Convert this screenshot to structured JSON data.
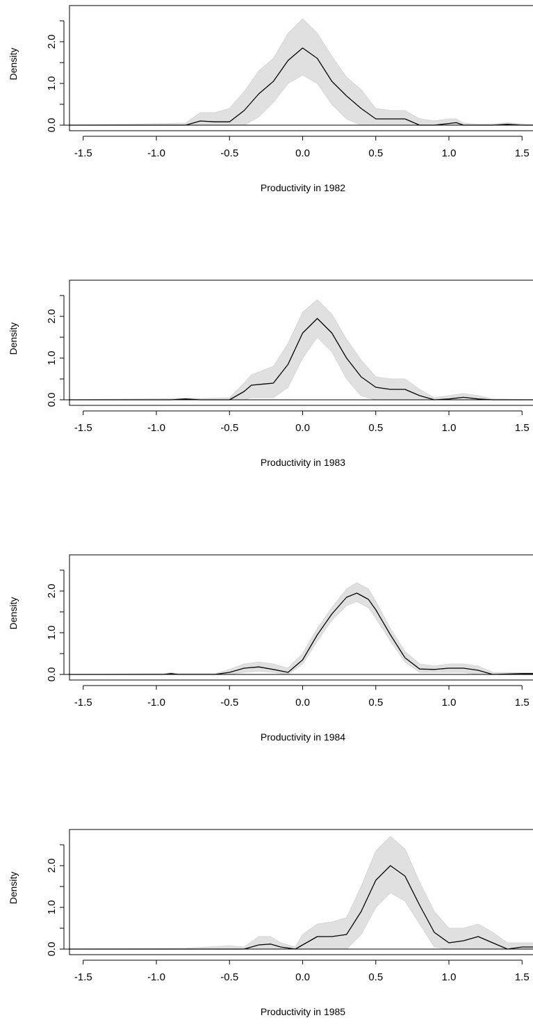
{
  "chart_data": [
    {
      "type": "area",
      "xlabel": "Productivity in 1982",
      "ylabel": "Density",
      "xlim": [
        -1.5,
        1.5
      ],
      "ylim": [
        0,
        2.5
      ],
      "x_ticks": [
        "-1.5",
        "-1.0",
        "-0.5",
        "0.0",
        "0.5",
        "1.0",
        "1.5"
      ],
      "y_ticks": [
        "0.0",
        "1.0",
        "2.0"
      ],
      "series": [
        {
          "x": [
            -1.6,
            -0.8,
            -0.7,
            -0.6,
            -0.5,
            -0.4,
            -0.3,
            -0.2,
            -0.1,
            0.0,
            0.1,
            0.2,
            0.3,
            0.4,
            0.5,
            0.6,
            0.7,
            0.8,
            0.9,
            1.0,
            1.05,
            1.1,
            1.2,
            1.3,
            1.4,
            1.5,
            1.6
          ],
          "y": [
            0,
            0,
            0.1,
            0.08,
            0.08,
            0.35,
            0.75,
            1.05,
            1.55,
            1.85,
            1.6,
            1.05,
            0.7,
            0.4,
            0.15,
            0.15,
            0.15,
            0,
            0,
            0.04,
            0.06,
            0,
            0,
            0,
            0.02,
            0,
            0
          ],
          "lower": [
            0,
            0,
            0,
            0,
            0,
            0,
            0.2,
            0.55,
            1.0,
            1.2,
            1.0,
            0.5,
            0.15,
            0,
            0,
            0,
            0,
            0,
            0,
            0,
            0,
            0,
            0,
            0,
            0,
            0,
            0
          ],
          "upper": [
            0,
            0.05,
            0.3,
            0.3,
            0.4,
            0.8,
            1.3,
            1.6,
            2.2,
            2.55,
            2.2,
            1.65,
            1.15,
            0.85,
            0.4,
            0.35,
            0.35,
            0.15,
            0.1,
            0.15,
            0.15,
            0.05,
            0.02,
            0.03,
            0.06,
            0.03,
            0
          ]
        }
      ]
    },
    {
      "type": "area",
      "xlabel": "Productivity in 1983",
      "ylabel": "Density",
      "xlim": [
        -1.5,
        1.5
      ],
      "ylim": [
        0,
        2.5
      ],
      "x_ticks": [
        "-1.5",
        "-1.0",
        "-0.5",
        "0.0",
        "0.5",
        "1.0",
        "1.5"
      ],
      "y_ticks": [
        "0.0",
        "1.0",
        "2.0"
      ],
      "series": [
        {
          "x": [
            -1.6,
            -0.9,
            -0.8,
            -0.7,
            -0.5,
            -0.4,
            -0.35,
            -0.2,
            -0.1,
            0.0,
            0.1,
            0.2,
            0.3,
            0.4,
            0.5,
            0.6,
            0.7,
            0.8,
            0.9,
            1.0,
            1.1,
            1.2,
            1.3,
            1.6
          ],
          "y": [
            0,
            0,
            0.02,
            0,
            0,
            0.2,
            0.35,
            0.4,
            0.85,
            1.6,
            1.95,
            1.6,
            1.0,
            0.55,
            0.3,
            0.25,
            0.25,
            0.1,
            0,
            0.02,
            0.06,
            0.02,
            0,
            0
          ],
          "lower": [
            0,
            0,
            0,
            0,
            0,
            0,
            0.05,
            0.05,
            0.3,
            1.0,
            1.5,
            1.15,
            0.5,
            0.1,
            0,
            0,
            0,
            0,
            0,
            0,
            0,
            0,
            0,
            0
          ],
          "upper": [
            0,
            0.03,
            0.04,
            0.03,
            0.05,
            0.4,
            0.6,
            0.8,
            1.35,
            2.1,
            2.4,
            2.05,
            1.45,
            0.95,
            0.55,
            0.5,
            0.5,
            0.25,
            0.05,
            0.1,
            0.15,
            0.1,
            0.02,
            0
          ]
        }
      ]
    },
    {
      "type": "area",
      "xlabel": "Productivity in 1984",
      "ylabel": "Density",
      "xlim": [
        -1.5,
        1.5
      ],
      "ylim": [
        0,
        2.5
      ],
      "x_ticks": [
        "-1.5",
        "-1.0",
        "-0.5",
        "0.0",
        "0.5",
        "1.0",
        "1.5"
      ],
      "y_ticks": [
        "0.0",
        "1.0",
        "2.0"
      ],
      "series": [
        {
          "x": [
            -1.6,
            -0.95,
            -0.9,
            -0.85,
            -0.6,
            -0.5,
            -0.4,
            -0.3,
            -0.2,
            -0.1,
            0.0,
            0.1,
            0.2,
            0.3,
            0.37,
            0.45,
            0.5,
            0.6,
            0.7,
            0.8,
            0.9,
            1.0,
            1.1,
            1.2,
            1.3,
            1.5,
            1.6
          ],
          "y": [
            0,
            0,
            0.02,
            0,
            0,
            0.05,
            0.15,
            0.18,
            0.12,
            0.05,
            0.35,
            0.95,
            1.45,
            1.85,
            1.95,
            1.8,
            1.55,
            0.95,
            0.4,
            0.13,
            0.12,
            0.15,
            0.15,
            0.1,
            0,
            0.02,
            0.02
          ],
          "lower": [
            0,
            0,
            0,
            0,
            0,
            0,
            0.05,
            0.08,
            0.05,
            0,
            0.25,
            0.8,
            1.3,
            1.65,
            1.75,
            1.6,
            1.35,
            0.8,
            0.3,
            0.05,
            0.05,
            0.05,
            0.05,
            0,
            0,
            0,
            0
          ],
          "upper": [
            0,
            0.02,
            0.04,
            0.02,
            0.02,
            0.12,
            0.25,
            0.3,
            0.25,
            0.15,
            0.5,
            1.1,
            1.6,
            2.05,
            2.2,
            2.05,
            1.75,
            1.1,
            0.55,
            0.25,
            0.2,
            0.25,
            0.25,
            0.2,
            0.05,
            0.04,
            0.04
          ]
        }
      ]
    },
    {
      "type": "area",
      "xlabel": "Productivity in 1985",
      "ylabel": "Density",
      "xlim": [
        -1.5,
        1.5
      ],
      "ylim": [
        0,
        2.5
      ],
      "x_ticks": [
        "-1.5",
        "-1.0",
        "-0.5",
        "0.0",
        "0.5",
        "1.0",
        "1.5"
      ],
      "y_ticks": [
        "0.0",
        "1.0",
        "2.0"
      ],
      "series": [
        {
          "x": [
            -1.6,
            -0.8,
            -0.5,
            -0.4,
            -0.3,
            -0.22,
            -0.15,
            -0.05,
            0.0,
            0.1,
            0.2,
            0.3,
            0.4,
            0.5,
            0.6,
            0.7,
            0.8,
            0.9,
            1.0,
            1.1,
            1.2,
            1.3,
            1.4,
            1.5,
            1.6
          ],
          "y": [
            0,
            0,
            0,
            0,
            0.1,
            0.12,
            0.05,
            0,
            0.1,
            0.3,
            0.3,
            0.35,
            0.9,
            1.65,
            2.0,
            1.75,
            1.05,
            0.4,
            0.15,
            0.2,
            0.3,
            0.15,
            0,
            0.05,
            0.05
          ],
          "lower": [
            0,
            0,
            0,
            0,
            0,
            0,
            0,
            0,
            0,
            0,
            0,
            0,
            0.35,
            1.0,
            1.35,
            1.15,
            0.6,
            0.05,
            0,
            0,
            0,
            0,
            0,
            0,
            0
          ],
          "upper": [
            0,
            0.02,
            0.08,
            0.05,
            0.3,
            0.3,
            0.15,
            0.05,
            0.35,
            0.6,
            0.65,
            0.75,
            1.5,
            2.35,
            2.7,
            2.4,
            1.6,
            0.9,
            0.5,
            0.5,
            0.6,
            0.4,
            0.15,
            0.15,
            0.15
          ]
        }
      ]
    }
  ]
}
